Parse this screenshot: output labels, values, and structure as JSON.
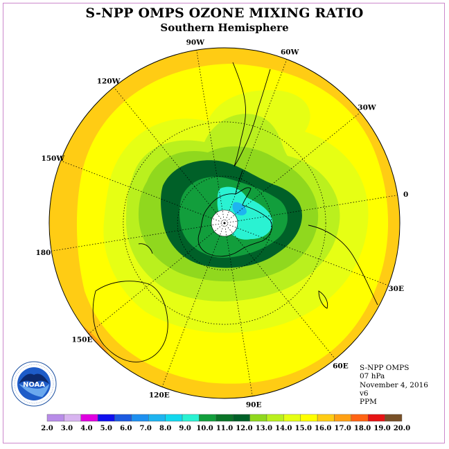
{
  "title": "S-NPP OMPS OZONE MIXING RATIO",
  "subtitle": "Southern Hemisphere",
  "map": {
    "projection": "south-polar-stereographic",
    "longitude_labels": [
      {
        "text": "0",
        "lon": 0
      },
      {
        "text": "30E",
        "lon": 30
      },
      {
        "text": "60E",
        "lon": 60
      },
      {
        "text": "90E",
        "lon": 90
      },
      {
        "text": "120E",
        "lon": 120
      },
      {
        "text": "150E",
        "lon": 150
      },
      {
        "text": "180",
        "lon": 180
      },
      {
        "text": "150W",
        "lon": -150
      },
      {
        "text": "120W",
        "lon": -120
      },
      {
        "text": "90W",
        "lon": -90
      },
      {
        "text": "60W",
        "lon": -60
      },
      {
        "text": "30W",
        "lon": -30
      }
    ],
    "latitude_circles": [
      -30,
      -60
    ],
    "grid_line_style": "dotted",
    "polar_no_data": true
  },
  "info": {
    "instrument": "S-NPP OMPS",
    "level": "07 hPa",
    "date": "November 4, 2016",
    "version": "v6",
    "units": "PPM"
  },
  "colorbar": {
    "ticks": [
      "2.0",
      "3.0",
      "4.0",
      "5.0",
      "6.0",
      "7.0",
      "8.0",
      "9.0",
      "10.0",
      "11.0",
      "12.0",
      "13.0",
      "14.0",
      "15.0",
      "16.0",
      "17.0",
      "18.0",
      "19.0",
      "20.0"
    ],
    "colors": [
      "#b88ce8",
      "#d8b4f0",
      "#e000e0",
      "#1010ee",
      "#1c5ae0",
      "#1e90f0",
      "#1eb4f0",
      "#12d8ee",
      "#2af2d2",
      "#129e3c",
      "#0a7428",
      "#006028",
      "#90d81e",
      "#baf01e",
      "#e6ff14",
      "#ffff00",
      "#ffcc14",
      "#ffa014",
      "#ff6414",
      "#e61414",
      "#785028"
    ]
  },
  "logo": {
    "text": "NOAA",
    "ring_text": "NATIONAL OCEANIC AND ATMOSPHERIC ADMINISTRATION · U.S. DEPARTMENT OF COMMERCE"
  }
}
